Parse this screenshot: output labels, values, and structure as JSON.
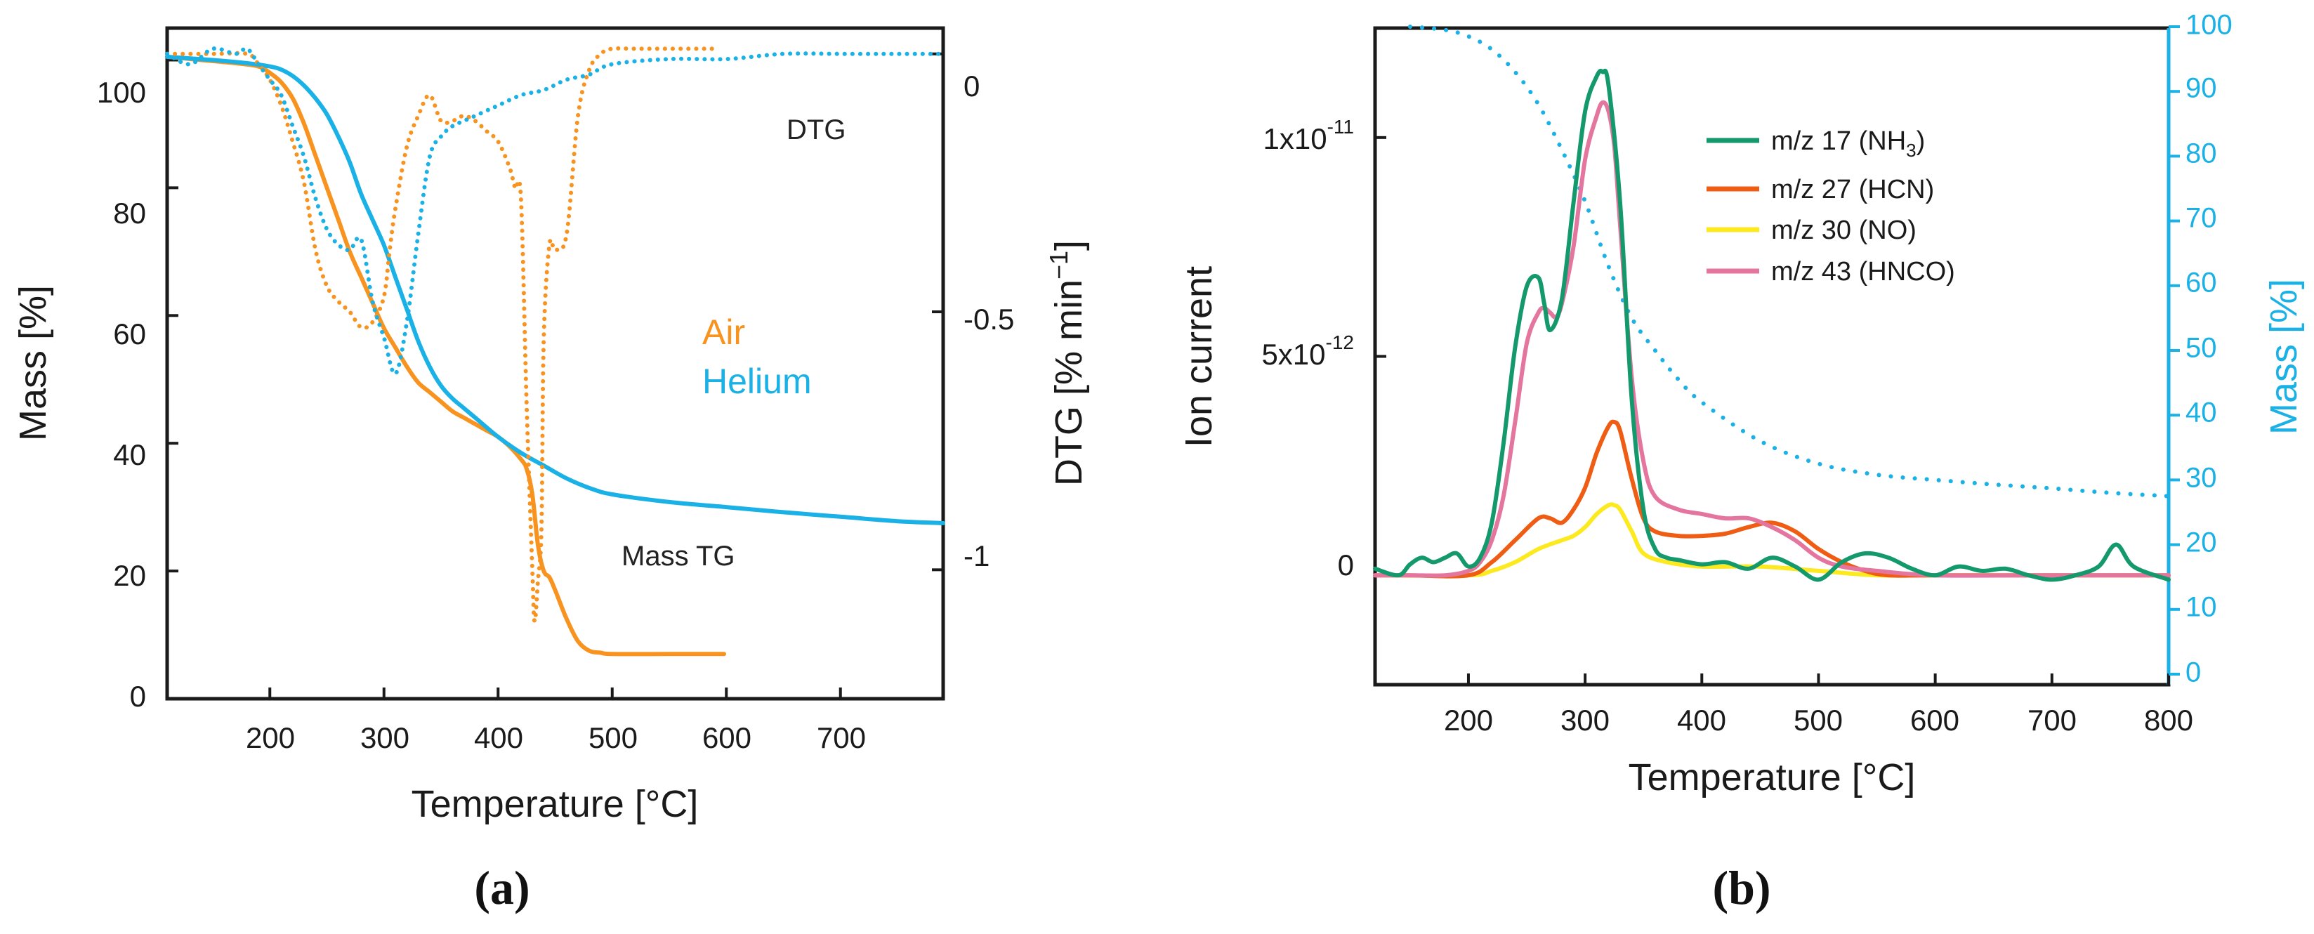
{
  "chart_data": [
    {
      "panel": "a",
      "panel_label": "(a)",
      "type": "line",
      "xlabel": "Temperature [°C]",
      "ylabel": "Mass [%]",
      "y2label": "DTG [% min",
      "y2label_sup": "−1",
      "y2label_close": "]",
      "xlim": [
        110,
        790
      ],
      "ylim": [
        0,
        105
      ],
      "y2lim": [
        -1.25,
        0.05
      ],
      "xticks": [
        200,
        300,
        400,
        500,
        600,
        700
      ],
      "xtick_labels": [
        "200",
        "300",
        "400",
        "500",
        "600",
        "700"
      ],
      "yticks": [
        0,
        20,
        40,
        60,
        80,
        100
      ],
      "ytick_labels": [
        "0",
        "20",
        "40",
        "60",
        "80",
        "100"
      ],
      "y2ticks": [
        0,
        -0.5,
        -1
      ],
      "y2tick_labels": [
        "0",
        "-0.5",
        "-1"
      ],
      "annotations": [
        {
          "text": "Air",
          "color": "#f7931e"
        },
        {
          "text": "Helium",
          "color": "#1ab1e6"
        },
        {
          "text": "DTG",
          "color": "#222222"
        },
        {
          "text": "Mass TG",
          "color": "#222222"
        }
      ],
      "series": [
        {
          "name": "Air TG",
          "axis": "y",
          "style": "solid",
          "color": "#f7931e",
          "x": [
            110,
            140,
            170,
            190,
            200,
            210,
            220,
            230,
            240,
            250,
            260,
            270,
            280,
            290,
            300,
            310,
            320,
            330,
            340,
            350,
            360,
            370,
            380,
            390,
            400,
            410,
            420,
            425,
            430,
            435,
            440,
            445,
            450,
            460,
            470,
            480,
            490,
            500,
            550,
            598
          ],
          "y": [
            100.5,
            100,
            99.5,
            99,
            98,
            96.5,
            94,
            90,
            85,
            80,
            75,
            70,
            66,
            62,
            58,
            55,
            52,
            49.5,
            48,
            46.5,
            45,
            44,
            43,
            42,
            41,
            39.5,
            37.5,
            36,
            32,
            24,
            20,
            19,
            17,
            12.5,
            9,
            7.5,
            7.2,
            7,
            7,
            7
          ]
        },
        {
          "name": "Helium TG",
          "axis": "y",
          "style": "solid",
          "color": "#1ab1e6",
          "x": [
            110,
            150,
            180,
            200,
            210,
            220,
            230,
            240,
            250,
            260,
            270,
            280,
            290,
            300,
            310,
            320,
            330,
            340,
            350,
            360,
            370,
            380,
            400,
            420,
            440,
            460,
            480,
            500,
            550,
            600,
            650,
            700,
            750,
            790
          ],
          "y": [
            100.5,
            100,
            99.5,
            99,
            98.5,
            97.5,
            96,
            94,
            91.5,
            88,
            84,
            79,
            75,
            71,
            66,
            61,
            56,
            52,
            49,
            47,
            45.5,
            44,
            41,
            38.5,
            36.5,
            34.5,
            33,
            32,
            30.8,
            30,
            29.2,
            28.5,
            27.8,
            27.5
          ]
        },
        {
          "name": "Air DTG",
          "axis": "y2",
          "style": "dotted",
          "color": "#f7931e",
          "x": [
            110,
            150,
            180,
            190,
            200,
            210,
            220,
            230,
            240,
            250,
            260,
            270,
            280,
            290,
            300,
            305,
            310,
            320,
            330,
            340,
            350,
            360,
            370,
            380,
            390,
            400,
            410,
            415,
            420,
            425,
            430,
            432,
            435,
            438,
            440,
            445,
            450,
            460,
            470,
            480,
            490,
            500,
            520,
            550,
            590
          ],
          "y": [
            0,
            0,
            0,
            -0.02,
            -0.05,
            -0.1,
            -0.17,
            -0.25,
            -0.38,
            -0.45,
            -0.48,
            -0.5,
            -0.53,
            -0.52,
            -0.47,
            -0.38,
            -0.3,
            -0.18,
            -0.12,
            -0.08,
            -0.13,
            -0.13,
            -0.12,
            -0.13,
            -0.15,
            -0.17,
            -0.22,
            -0.26,
            -0.28,
            -0.68,
            -1.0,
            -1.1,
            -1.02,
            -0.92,
            -0.55,
            -0.37,
            -0.38,
            -0.35,
            -0.12,
            -0.03,
            0,
            0.01,
            0.01,
            0.01,
            0.01
          ]
        },
        {
          "name": "Helium DTG",
          "axis": "y2",
          "style": "dotted",
          "color": "#1ab1e6",
          "x": [
            110,
            130,
            150,
            170,
            180,
            190,
            200,
            210,
            220,
            230,
            240,
            250,
            260,
            270,
            280,
            290,
            300,
            310,
            320,
            330,
            340,
            350,
            360,
            370,
            380,
            390,
            400,
            420,
            440,
            460,
            480,
            500,
            550,
            600,
            650,
            700,
            750,
            790
          ],
          "y": [
            0,
            -0.02,
            0.01,
            0,
            0.01,
            -0.02,
            -0.05,
            -0.08,
            -0.14,
            -0.2,
            -0.28,
            -0.34,
            -0.37,
            -0.38,
            -0.36,
            -0.48,
            -0.55,
            -0.62,
            -0.52,
            -0.35,
            -0.2,
            -0.16,
            -0.14,
            -0.13,
            -0.12,
            -0.11,
            -0.1,
            -0.08,
            -0.07,
            -0.05,
            -0.04,
            -0.02,
            -0.01,
            -0.01,
            0,
            0,
            0,
            0
          ]
        }
      ]
    },
    {
      "panel": "b",
      "panel_label": "(b)",
      "type": "line",
      "xlabel": "Temperature [°C]",
      "ylabel": "Ion current",
      "y2label": "Mass [%]",
      "xlim": [
        120,
        800
      ],
      "ylim": [
        -2.5e-12,
        1.25e-11
      ],
      "y2lim": [
        0,
        100
      ],
      "xticks": [
        200,
        300,
        400,
        500,
        600,
        700,
        800
      ],
      "xtick_labels": [
        "200",
        "300",
        "400",
        "500",
        "600",
        "700",
        "800"
      ],
      "yticks": [
        0,
        5e-12,
        1e-11
      ],
      "ytick_bases": [
        "0",
        "5x10",
        "1x10"
      ],
      "ytick_exps": [
        "",
        "-12",
        "-11"
      ],
      "y2ticks": [
        0,
        10,
        20,
        30,
        40,
        50,
        60,
        70,
        80,
        90,
        100
      ],
      "y2tick_labels": [
        "0",
        "10",
        "20",
        "30",
        "40",
        "50",
        "60",
        "70",
        "80",
        "90",
        "100"
      ],
      "series": [
        {
          "name": "m/z 17 (NH",
          "sub": "3",
          "close": ")",
          "color": "#13996b",
          "x": [
            120,
            140,
            150,
            160,
            170,
            180,
            190,
            200,
            210,
            220,
            230,
            240,
            250,
            260,
            265,
            270,
            280,
            290,
            300,
            310,
            315,
            320,
            330,
            340,
            350,
            360,
            370,
            380,
            400,
            420,
            440,
            460,
            480,
            500,
            520,
            540,
            560,
            580,
            600,
            620,
            640,
            660,
            680,
            700,
            720,
            740,
            755,
            770,
            800
          ],
          "y": [
            1.5e-13,
            0,
            2.5e-13,
            4e-13,
            3e-13,
            4e-13,
            5e-13,
            2e-13,
            4e-13,
            1.2e-12,
            3e-12,
            5.2e-12,
            6.6e-12,
            6.8e-12,
            6.2e-12,
            5.6e-12,
            6.3e-12,
            8.5e-12,
            1.06e-11,
            1.14e-11,
            1.15e-11,
            1.12e-11,
            8.5e-12,
            4e-12,
            1.5e-12,
            6e-13,
            4e-13,
            3.5e-13,
            2.5e-13,
            3e-13,
            1.5e-13,
            4e-13,
            2e-13,
            -1e-13,
            3e-13,
            5e-13,
            4e-13,
            1.5e-13,
            0,
            2e-13,
            1e-13,
            1.5e-13,
            0,
            -1e-13,
            0,
            2e-13,
            7e-13,
            2e-13,
            -1e-13
          ]
        },
        {
          "name": "m/z 27 (HCN)",
          "color": "#ef5c13",
          "x": [
            120,
            150,
            200,
            220,
            240,
            260,
            270,
            280,
            290,
            300,
            310,
            320,
            325,
            330,
            340,
            350,
            360,
            380,
            400,
            420,
            440,
            460,
            480,
            500,
            520,
            540,
            560,
            600,
            700,
            800
          ],
          "y": [
            0,
            0,
            0,
            3e-13,
            8e-13,
            1.3e-12,
            1.3e-12,
            1.2e-12,
            1.5e-12,
            2e-12,
            2.8e-12,
            3.4e-12,
            3.5e-12,
            3.3e-12,
            2.2e-12,
            1.3e-12,
            1e-12,
            9e-13,
            9e-13,
            9.5e-13,
            1.1e-12,
            1.2e-12,
            1e-12,
            6e-13,
            3e-13,
            1e-13,
            0,
            0,
            0,
            0
          ]
        },
        {
          "name": "m/z 30 (NO)",
          "color": "#fde91f",
          "x": [
            120,
            200,
            220,
            240,
            260,
            280,
            290,
            300,
            310,
            320,
            325,
            330,
            340,
            350,
            370,
            400,
            450,
            500,
            550,
            600,
            700,
            800
          ],
          "y": [
            0,
            0,
            1e-13,
            3e-13,
            6e-13,
            8e-13,
            9e-13,
            1.1e-12,
            1.4e-12,
            1.6e-12,
            1.6e-12,
            1.5e-12,
            1e-12,
            5e-13,
            3e-13,
            2e-13,
            2e-13,
            1e-13,
            0,
            0,
            0,
            0
          ]
        },
        {
          "name": "m/z 43 (HNCO)",
          "color": "#e4759f",
          "x": [
            120,
            150,
            180,
            200,
            210,
            220,
            230,
            240,
            250,
            260,
            265,
            270,
            275,
            280,
            290,
            300,
            310,
            315,
            320,
            325,
            330,
            340,
            350,
            360,
            380,
            400,
            420,
            440,
            460,
            480,
            500,
            520,
            550,
            600,
            700,
            800
          ],
          "y": [
            0,
            0,
            0,
            1e-13,
            3e-13,
            8e-13,
            1.8e-12,
            3.5e-12,
            5.3e-12,
            6e-12,
            6.1e-12,
            6e-12,
            5.9e-12,
            6.2e-12,
            7.5e-12,
            9.5e-12,
            1.05e-11,
            1.08e-11,
            1.06e-11,
            9.8e-12,
            8e-12,
            4.5e-12,
            2.6e-12,
            1.8e-12,
            1.5e-12,
            1.4e-12,
            1.3e-12,
            1.3e-12,
            1.1e-12,
            8e-13,
            4e-13,
            2e-13,
            1e-13,
            0,
            0,
            0
          ]
        },
        {
          "name": "Mass",
          "axis": "y2",
          "style": "dotted",
          "color": "#1ab1e6",
          "legend": false,
          "x": [
            150,
            180,
            200,
            220,
            240,
            260,
            280,
            300,
            320,
            340,
            360,
            380,
            400,
            450,
            500,
            550,
            600,
            650,
            700,
            750,
            800
          ],
          "y": [
            100,
            99.5,
            98.5,
            96.5,
            93,
            88,
            81,
            73,
            63,
            55,
            50,
            45.5,
            42,
            36,
            32.5,
            30.8,
            30,
            29.3,
            28.7,
            28,
            27.5
          ]
        }
      ]
    }
  ]
}
